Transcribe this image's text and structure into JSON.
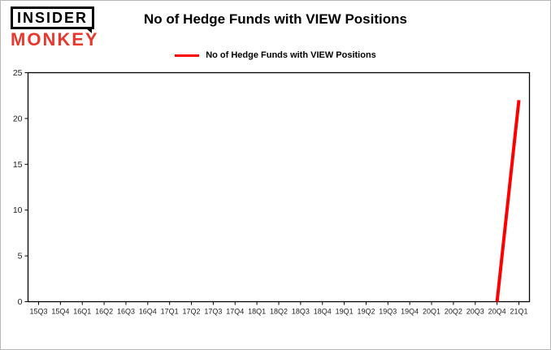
{
  "branding": {
    "line1": "INSIDER",
    "line2": "MONKEY",
    "monkey_color": "#e8382d"
  },
  "header": {
    "title": "No of Hedge Funds with VIEW Positions"
  },
  "legend": {
    "label": "No of Hedge Funds with VIEW Positions",
    "color": "#fe0000",
    "position": "top"
  },
  "chart_data": {
    "type": "line",
    "title": "No of Hedge Funds with VIEW Positions",
    "categories": [
      "15Q3",
      "15Q4",
      "16Q1",
      "16Q2",
      "16Q3",
      "16Q4",
      "17Q1",
      "17Q2",
      "17Q3",
      "17Q4",
      "18Q1",
      "18Q2",
      "18Q3",
      "18Q4",
      "19Q1",
      "19Q2",
      "19Q3",
      "19Q4",
      "20Q1",
      "20Q2",
      "20Q3",
      "20Q4",
      "21Q1"
    ],
    "values": [
      null,
      null,
      null,
      null,
      null,
      null,
      null,
      null,
      null,
      null,
      null,
      null,
      null,
      null,
      null,
      null,
      null,
      null,
      null,
      null,
      null,
      0,
      22
    ],
    "xlabel": "",
    "ylabel": "",
    "ylim": [
      0,
      25
    ],
    "yticks": [
      0,
      5,
      10,
      15,
      20,
      25
    ],
    "grid": false,
    "line_color": "#fe0000",
    "line_width": 4
  }
}
